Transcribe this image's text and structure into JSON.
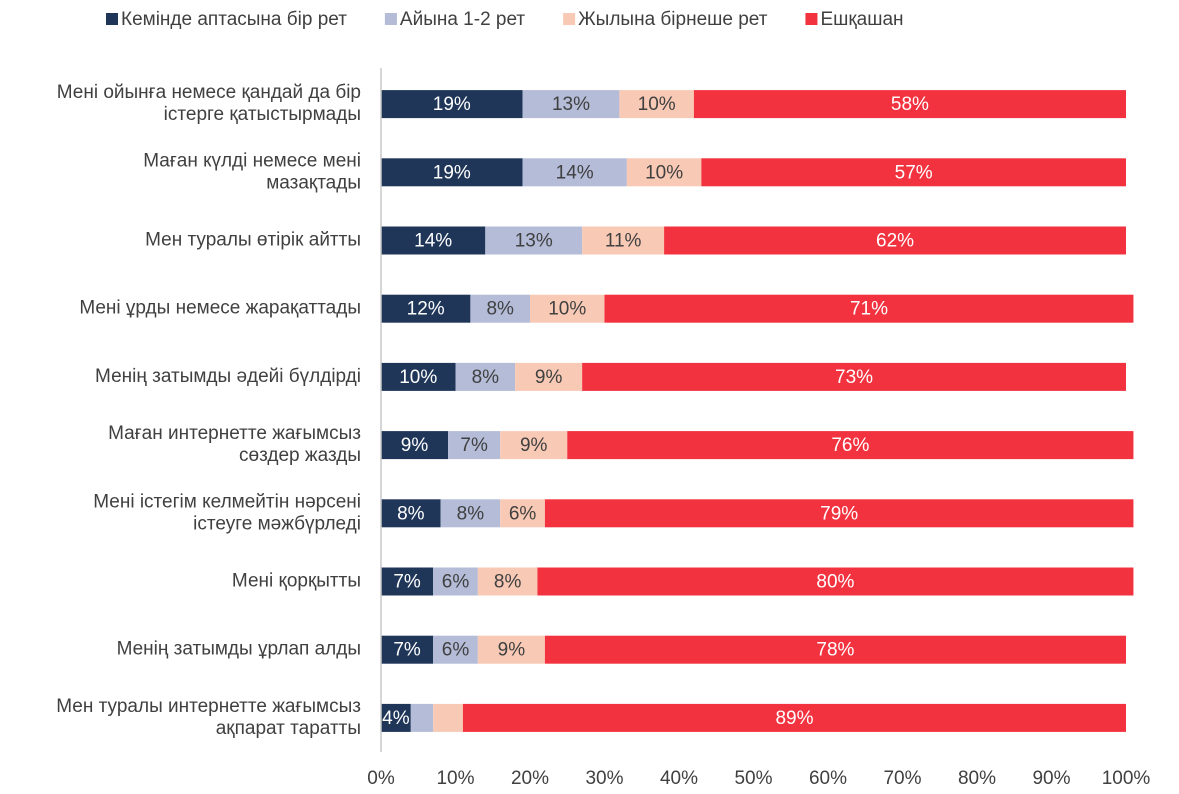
{
  "chart_data": {
    "type": "stacked-bar-horizontal",
    "categories": [
      "Мені ойынға немесе қандай да бір\nістерге қатыстырмады",
      "Маған күлді немесе мені\nмазақтады",
      "Мен туралы өтірік айтты",
      "Мені ұрды немесе жарақаттады",
      "Менің затымды әдейі бүлдірді",
      "Маған интернетте жағымсыз\nсөздер жазды",
      "Мені істегім келмейтін нәрсені\nістеуге мәжбүрледі",
      "Мені қорқытты",
      "Менің затымды ұрлап алды",
      "Мен туралы интернетте жағымсыз\nақпарат таратты"
    ],
    "series": [
      {
        "name": "Кемінде аптасына бір рет",
        "color": "#1f3659",
        "values": [
          19,
          19,
          14,
          12,
          10,
          9,
          8,
          7,
          7,
          4
        ],
        "value_labels": [
          "19%",
          "19%",
          "14%",
          "12%",
          "10%",
          "9%",
          "8%",
          "7%",
          "7%",
          "4%"
        ]
      },
      {
        "name": "Айына 1-2 рет",
        "color": "#b4bcd8",
        "values": [
          13,
          14,
          13,
          8,
          8,
          7,
          8,
          6,
          6,
          3
        ],
        "value_labels": [
          "13%",
          "14%",
          "13%",
          "8%",
          "8%",
          "7%",
          "8%",
          "6%",
          "6%",
          null
        ]
      },
      {
        "name": "Жылына бірнеше рет",
        "color": "#f8c9b5",
        "values": [
          10,
          10,
          11,
          10,
          9,
          9,
          6,
          8,
          9,
          4
        ],
        "value_labels": [
          "10%",
          "10%",
          "11%",
          "10%",
          "9%",
          "9%",
          "6%",
          "8%",
          "9%",
          null
        ]
      },
      {
        "name": "Ешқашан",
        "color": "#f2323f",
        "values": [
          58,
          57,
          62,
          71,
          73,
          76,
          79,
          80,
          78,
          89
        ],
        "value_labels": [
          "58%",
          "57%",
          "62%",
          "71%",
          "73%",
          "76%",
          "79%",
          "80%",
          "78%",
          "89%"
        ]
      }
    ],
    "xlim": [
      0,
      100
    ],
    "xticks": [
      {
        "value": 0,
        "label": "0%"
      },
      {
        "value": 10,
        "label": "10%"
      },
      {
        "value": 20,
        "label": "20%"
      },
      {
        "value": 30,
        "label": "30%"
      },
      {
        "value": 40,
        "label": "40%"
      },
      {
        "value": 50,
        "label": "50%"
      },
      {
        "value": 60,
        "label": "60%"
      },
      {
        "value": 70,
        "label": "70%"
      },
      {
        "value": 80,
        "label": "80%"
      },
      {
        "value": 90,
        "label": "90%"
      },
      {
        "value": 100,
        "label": "100%"
      }
    ]
  }
}
